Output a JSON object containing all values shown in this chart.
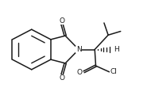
{
  "bg_color": "#ffffff",
  "line_color": "#1a1a1a",
  "line_width": 1.1,
  "figsize": [
    1.9,
    1.25
  ],
  "dpi": 100,
  "xlim": [
    -0.25,
    1.2
  ],
  "ylim": [
    0.0,
    1.05
  ]
}
